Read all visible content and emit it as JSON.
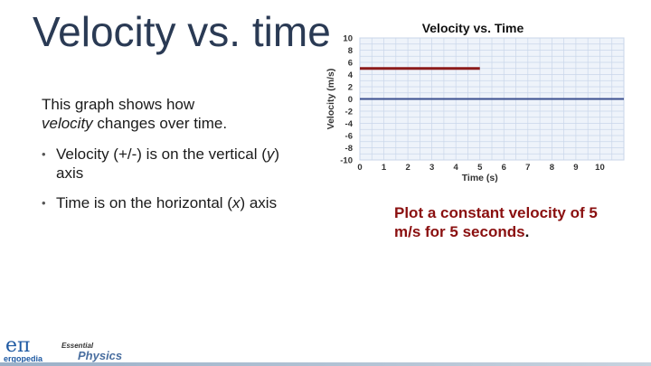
{
  "slide": {
    "title": "Velocity vs. time",
    "intro_before": "This graph shows how",
    "intro_em": "velocity",
    "intro_after": "changes over time.",
    "bullets": [
      {
        "a": "Velocity (+/-) is on the vertical (",
        "it": "y",
        "b": ") axis"
      },
      {
        "a": "Time is on the horizontal (",
        "it": "x",
        "b": ") axis"
      }
    ],
    "task": "Plot a constant velocity of 5 m/s for 5 seconds",
    "task_end": "."
  },
  "logos": {
    "left_symbol": "eπ",
    "left_word": "ergopedia",
    "right_small": "Essential",
    "right_big": "Physics"
  },
  "chart_data": {
    "type": "line",
    "title": "Velocity vs. Time",
    "xlabel": "Time (s)",
    "ylabel": "Velocity (m/s)",
    "xlim": [
      0,
      11
    ],
    "ylim": [
      -10,
      10
    ],
    "x_ticks": [
      0,
      1,
      2,
      3,
      4,
      5,
      6,
      7,
      8,
      9,
      10
    ],
    "y_ticks": [
      10,
      8,
      6,
      4,
      2,
      0,
      -2,
      -4,
      -6,
      -8,
      -10
    ],
    "grid": true,
    "series": [
      {
        "x": [
          0,
          5
        ],
        "y": [
          5,
          5
        ],
        "color": "#8b1a1a"
      },
      {
        "x": [
          0,
          11
        ],
        "y": [
          0,
          0
        ],
        "color": "#3b4f8f"
      }
    ]
  }
}
